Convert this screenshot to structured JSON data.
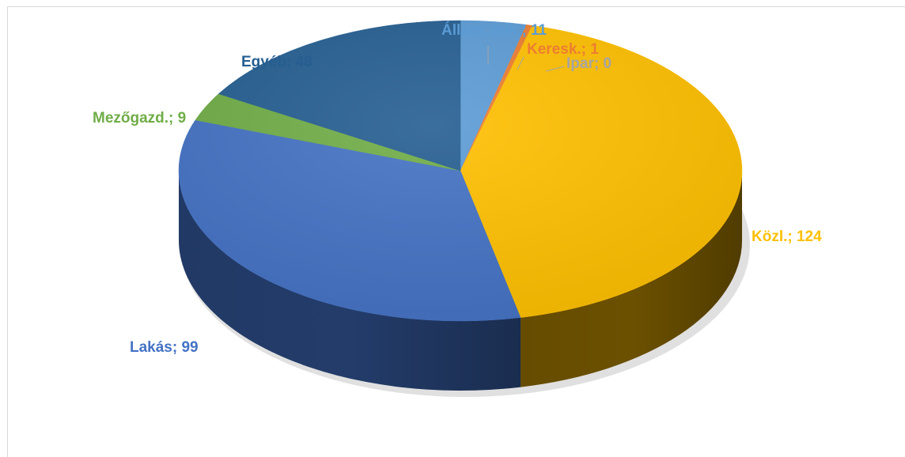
{
  "chart_data": {
    "type": "pie",
    "title": "",
    "legend": "none",
    "slices": [
      {
        "label": "Állam, önk.",
        "value": 11,
        "display": "Állam, önk.; 11",
        "color": "#5b9bd5",
        "dark": "#2f5e8c"
      },
      {
        "label": "Keresk.",
        "value": 1,
        "display": "Keresk.; 1",
        "color": "#ed7d31",
        "dark": "#8e4a1d"
      },
      {
        "label": "Ipar",
        "value": 0,
        "display": "Ipar; 0",
        "color": "#a5a5a5",
        "dark": "#636363"
      },
      {
        "label": "Közl.",
        "value": 124,
        "display": "Közl.; 124",
        "color": "#ffc000",
        "dark": "#6b5000"
      },
      {
        "label": "Lakás",
        "value": 99,
        "display": "Lakás; 99",
        "color": "#4472c4",
        "dark": "#233c6a"
      },
      {
        "label": "Mezőgazd.",
        "value": 9,
        "display": "Mezőgazd.; 9",
        "color": "#70ad47",
        "dark": "#3d6127"
      },
      {
        "label": "Egyéb",
        "value": 48,
        "display": "Egyéb; 48",
        "color": "#255e91",
        "dark": "#14324e"
      }
    ]
  }
}
